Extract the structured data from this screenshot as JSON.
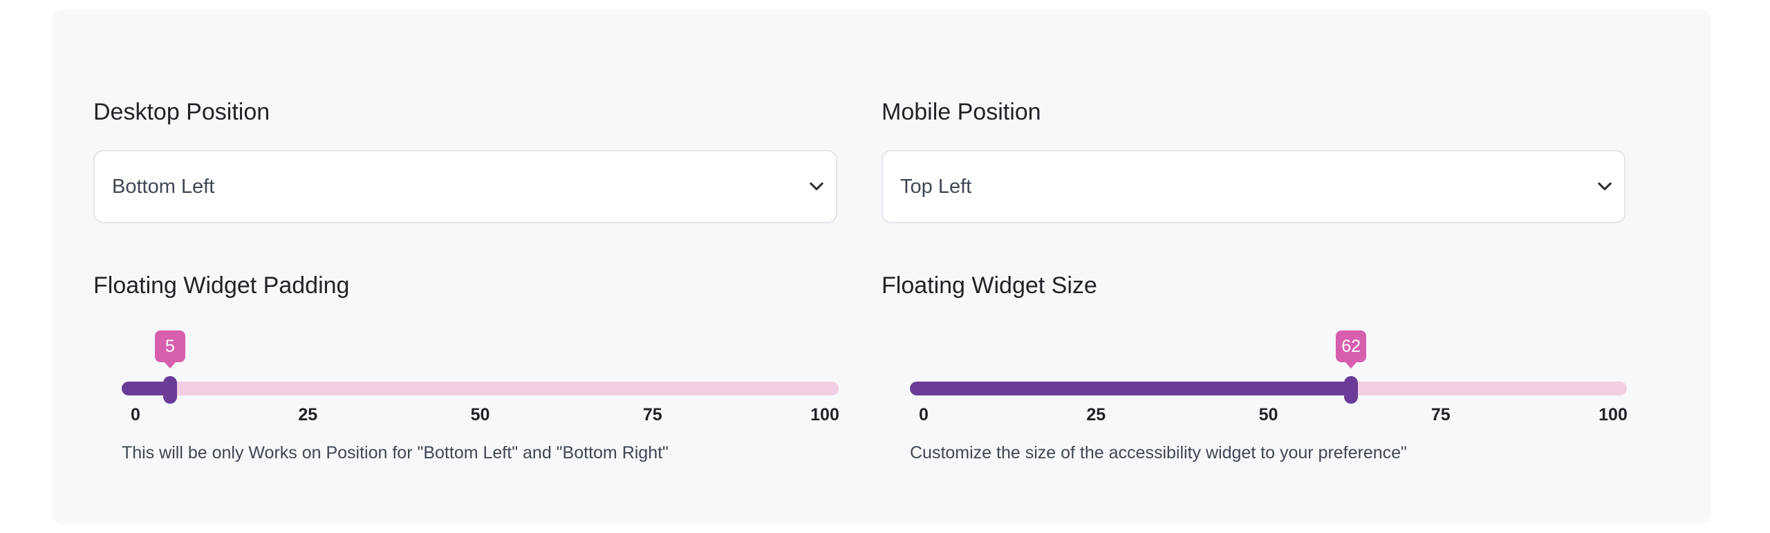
{
  "desktop_position": {
    "label": "Desktop Position",
    "selected": "Bottom Left"
  },
  "mobile_position": {
    "label": "Mobile Position",
    "selected": "Top Left"
  },
  "padding_slider": {
    "label": "Floating Widget Padding",
    "value": 5,
    "value_text": "5",
    "min": 0,
    "max": 100,
    "ticks": [
      "0",
      "25",
      "50",
      "75",
      "100"
    ],
    "help": "This will be only Works on Position for \"Bottom Left\" and \"Bottom Right\""
  },
  "size_slider": {
    "label": "Floating Widget Size",
    "value": 62,
    "value_text": "62",
    "min": 0,
    "max": 100,
    "ticks": [
      "0",
      "25",
      "50",
      "75",
      "100"
    ],
    "help": "Customize the size of the accessibility widget to your preference\""
  },
  "icons": {
    "select_arrow": "chevron-down-icon"
  },
  "colors": {
    "panel_bg": "#f7f8fa",
    "slider_fill": "#6a3c98",
    "slider_track": "#f3cde3",
    "tooltip_bg": "#d75fae"
  }
}
